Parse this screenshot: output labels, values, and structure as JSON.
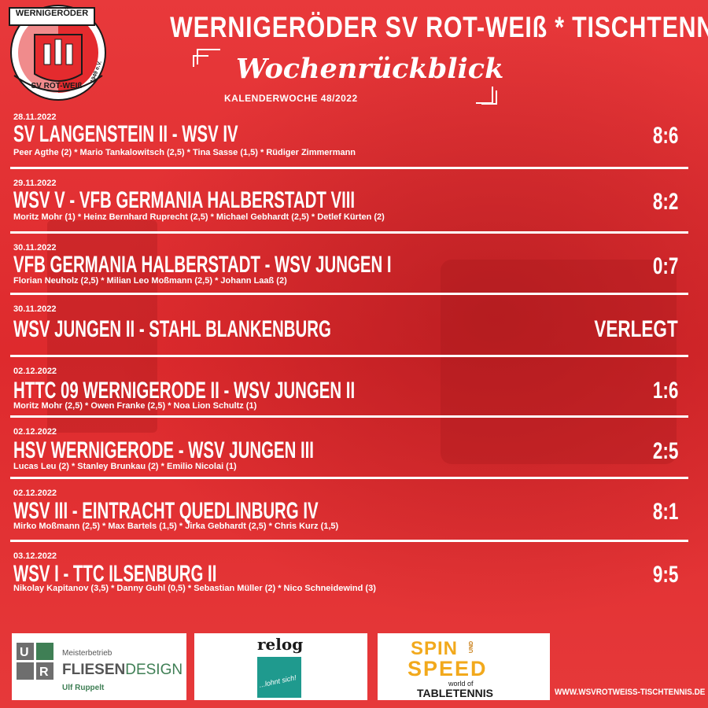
{
  "header": {
    "title": "WERNIGERÖDER SV ROT-WEIß * TISCHTENNIS",
    "subtitle": "Wochenrückblick",
    "week": "KALENDERWOCHE 48/2022"
  },
  "logo": {
    "top_text": "WERNIGERÖDER",
    "bottom_text": "SV ROT-WEIß",
    "year": "1949 e.V.",
    "colors": {
      "red": "#e42b2e",
      "white": "#ffffff",
      "dark": "#1a1a1a"
    }
  },
  "matches": [
    {
      "date": "28.11.2022",
      "title": "SV LANGENSTEIN II - WSV IV",
      "players": "Peer Agthe (2) * Mario Tankalowitsch (2,5) * Tina Sasse (1,5) * Rüdiger Zimmermann",
      "score": "8:6"
    },
    {
      "date": "29.11.2022",
      "title": "WSV V - VFB GERMANIA HALBERSTADT VIII",
      "players": "Moritz Mohr (1) * Heinz Bernhard Ruprecht (2,5) * Michael Gebhardt (2,5) * Detlef Kürten (2)",
      "score": "8:2"
    },
    {
      "date": "30.11.2022",
      "title": "VFB GERMANIA HALBERSTADT - WSV JUNGEN I",
      "players": "Florian Neuholz (2,5) * Milian Leo Moßmann (2,5) * Johann Laaß (2)",
      "score": "0:7"
    },
    {
      "date": "30.11.2022",
      "title": "WSV JUNGEN II - STAHL BLANKENBURG",
      "players": "",
      "score": "VERLEGT"
    },
    {
      "date": "02.12.2022",
      "title": "HTTC 09 WERNIGERODE II - WSV JUNGEN II",
      "players": "Moritz Mohr (2,5) * Owen Franke (2,5) * Noa Lion Schultz (1)",
      "score": "1:6"
    },
    {
      "date": "02.12.2022",
      "title": "HSV WERNIGERODE - WSV JUNGEN III",
      "players": "Lucas Leu (2) * Stanley Brunkau (2) * Emilio Nicolai (1)",
      "score": "2:5"
    },
    {
      "date": "02.12.2022",
      "title": "WSV III - EINTRACHT QUEDLINBURG IV",
      "players": "Mirko Moßmann (2,5) * Max Bartels (1,5) * Jirka Gebhardt (2,5) * Chris Kurz (1,5)",
      "score": "8:1"
    },
    {
      "date": "03.12.2022",
      "title": "WSV I - TTC ILSENBURG II",
      "players": "Nikolay Kapitanov (3,5) * Danny Guhl (0,5) * Sebastian Müller (2) * Nico Schneidewind (3)",
      "score": "9:5"
    }
  ],
  "sponsors": {
    "fliesen": {
      "line1": "Meisterbetrieb",
      "brand_a": "FLIESEN",
      "brand_b": "DESIGN",
      "owner": "Ulf Ruppelt",
      "mark": "UR",
      "colors": {
        "grey": "#6e6e6e",
        "green": "#3f7f55"
      }
    },
    "relog": {
      "name": "relog",
      "tagline": "...lohnt sich!",
      "color": "#1f9a8e"
    },
    "spin": {
      "line1a": "SPIN",
      "und": "UND",
      "line2": "SPEED",
      "small": "world of",
      "big": "TABLETENNIS",
      "color": "#f2a91c"
    }
  },
  "footer": {
    "url": "WWW.WSVROTWEISS-TISCHTENNIS.DE"
  }
}
